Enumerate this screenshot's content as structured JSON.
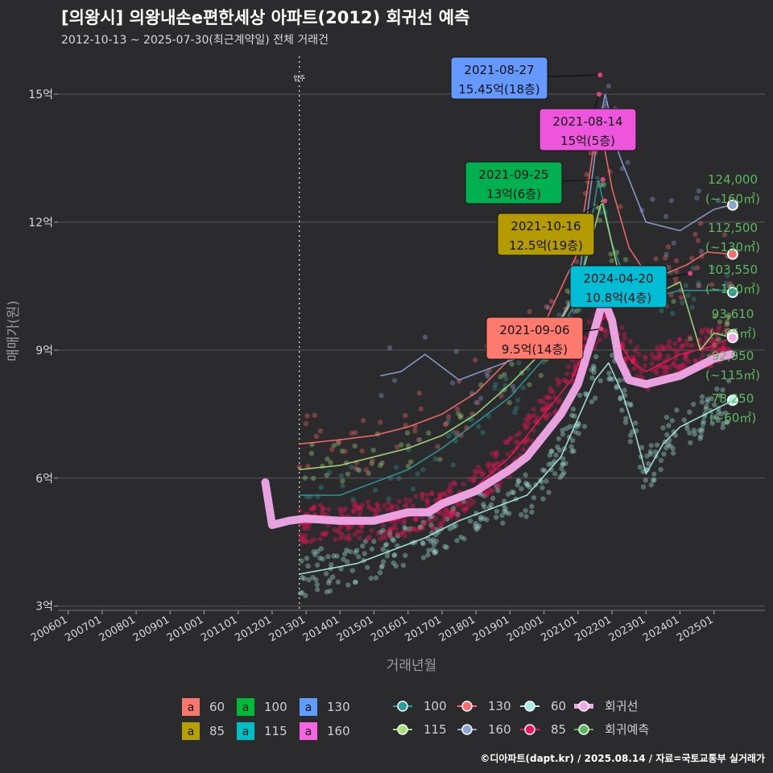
{
  "title": "[의왕시] 의왕내손e편한세상 아파트(2012) 회귀선 예측",
  "subtitle": "2012-10-13 ~ 2025-07-30(최근계약일) 전체 거래건",
  "credit": "©디아파트(dapt.kr) / 2025.08.14 / 자료=국토교통부 실거래가",
  "colors": {
    "background": "#2b2b2d",
    "grid": "#5a5a5c",
    "regression": "#f0a8e8",
    "forecast": "#5cb85c"
  },
  "chart_data": {
    "type": "line",
    "xlabel": "거래년월",
    "ylabel": "매매가(원)",
    "x_ticks": [
      "200601",
      "200701",
      "200801",
      "200901",
      "201001",
      "201101",
      "201201",
      "201301",
      "201401",
      "201501",
      "201601",
      "201701",
      "201801",
      "201901",
      "202001",
      "202101",
      "202201",
      "202301",
      "202401",
      "202501"
    ],
    "y_ticks": [
      {
        "value": 3,
        "label": "3억"
      },
      {
        "value": 6,
        "label": "6억"
      },
      {
        "value": 9,
        "label": "9억"
      },
      {
        "value": 12,
        "label": "12억"
      },
      {
        "value": 15,
        "label": "15억"
      }
    ],
    "xlim": [
      2005.7,
      2026.5
    ],
    "ylim": [
      2.9,
      16.0
    ],
    "grid": true,
    "move_in_label": "입주",
    "move_in_x": 2012.8,
    "series": [
      {
        "name": "60",
        "color": "#a8ede6",
        "x": [
          2012.8,
          2013.5,
          2014.5,
          2015.5,
          2016.5,
          2017.5,
          2018.5,
          2019.5,
          2020.5,
          2021.0,
          2021.5,
          2021.9,
          2022.3,
          2022.7,
          2023.0,
          2023.5,
          2024.0,
          2024.5,
          2025.0,
          2025.5
        ],
        "y": [
          3.75,
          3.85,
          4.0,
          4.3,
          4.6,
          5.0,
          5.3,
          5.6,
          6.5,
          7.4,
          8.3,
          8.7,
          8.0,
          7.0,
          6.1,
          6.8,
          7.2,
          7.4,
          7.6,
          7.8
        ]
      },
      {
        "name": "85",
        "color": "#f0145a",
        "x": [
          2012.8,
          2013.5,
          2014.5,
          2015.5,
          2016.5,
          2017.0,
          2018.0,
          2019.0,
          2020.0,
          2020.8,
          2021.5,
          2021.8,
          2022.2,
          2022.6,
          2023.0,
          2023.5,
          2024.0,
          2024.5,
          2025.0,
          2025.5
        ],
        "y": [
          4.9,
          5.0,
          5.0,
          5.0,
          5.2,
          5.3,
          5.8,
          6.5,
          7.5,
          8.3,
          9.5,
          9.8,
          9.2,
          8.7,
          8.5,
          8.7,
          8.9,
          9.0,
          9.1,
          9.3
        ]
      },
      {
        "name": "100",
        "color": "#2f9a9a",
        "x": [
          2012.8,
          2014.0,
          2015.0,
          2016.0,
          2017.0,
          2018.0,
          2019.0,
          2020.0,
          2021.0,
          2021.6,
          2022.0,
          2022.5,
          2023.0,
          2023.5,
          2024.0,
          2024.5,
          2025.0,
          2025.5
        ],
        "y": [
          5.6,
          5.6,
          5.9,
          6.2,
          6.7,
          7.3,
          7.9,
          8.8,
          10.2,
          13.0,
          11.5,
          10.4,
          10.2,
          10.3,
          10.4,
          10.4,
          10.4,
          10.4
        ]
      },
      {
        "name": "115",
        "color": "#a6e07a",
        "x": [
          2012.8,
          2014.0,
          2015.0,
          2016.0,
          2017.0,
          2018.0,
          2019.0,
          2020.0,
          2021.0,
          2021.7,
          2022.2,
          2023.0,
          2024.0,
          2024.6,
          2025.0,
          2025.5
        ],
        "y": [
          6.2,
          6.3,
          6.5,
          6.7,
          7.0,
          7.5,
          8.2,
          9.0,
          10.4,
          12.5,
          10.8,
          10.2,
          10.6,
          9.0,
          9.4,
          9.3
        ]
      },
      {
        "name": "130",
        "color": "#ff6b6b",
        "x": [
          2012.8,
          2014.0,
          2015.0,
          2016.0,
          2017.0,
          2018.0,
          2019.0,
          2020.0,
          2021.0,
          2021.6,
          2022.0,
          2022.5,
          2023.0,
          2023.6,
          2024.2,
          2024.8,
          2025.5
        ],
        "y": [
          6.8,
          6.9,
          7.0,
          7.2,
          7.5,
          8.0,
          8.8,
          9.6,
          11.3,
          14.5,
          12.8,
          11.4,
          10.8,
          10.8,
          11.0,
          11.3,
          11.25
        ]
      },
      {
        "name": "160",
        "color": "#8fa3d8",
        "x": [
          2015.2,
          2015.8,
          2016.5,
          2017.5,
          2018.5,
          2019.5,
          2020.2,
          2021.0,
          2021.6,
          2021.8,
          2022.2,
          2023.0,
          2024.0,
          2024.6,
          2025.0,
          2025.5
        ],
        "y": [
          8.4,
          8.5,
          8.9,
          8.3,
          8.6,
          8.9,
          9.3,
          10.5,
          14.2,
          15.0,
          13.6,
          12.0,
          11.8,
          12.1,
          12.3,
          12.4
        ]
      },
      {
        "name": "회귀선",
        "color": "#f0a8e8",
        "x": [
          2011.8,
          2012.0,
          2012.5,
          2013.0,
          2014.0,
          2015.0,
          2016.0,
          2016.6,
          2017.0,
          2018.0,
          2019.0,
          2019.5,
          2020.0,
          2020.5,
          2021.0,
          2021.5,
          2021.75,
          2022.0,
          2022.2,
          2022.5,
          2023.0,
          2023.5,
          2024.0,
          2024.5,
          2025.0,
          2025.5
        ],
        "y": [
          5.9,
          4.9,
          5.0,
          5.05,
          5.0,
          5.0,
          5.2,
          5.2,
          5.4,
          5.7,
          6.2,
          6.5,
          7.0,
          7.5,
          8.2,
          9.5,
          10.2,
          9.7,
          8.8,
          8.3,
          8.2,
          8.3,
          8.4,
          8.6,
          8.8,
          8.9
        ]
      }
    ],
    "forecast_points": [
      {
        "value": "124,000",
        "size": "(~160㎡)",
        "y": 12.4
      },
      {
        "value": "112,500",
        "size": "(~130㎡)",
        "y": 11.25
      },
      {
        "value": "103,550",
        "size": "(~100㎡)",
        "y": 10.355
      },
      {
        "value": "93,610",
        "size": "(~85㎡)",
        "y": 9.361
      },
      {
        "value": "92,950",
        "size": "(~115㎡)",
        "y": 9.295
      },
      {
        "value": "78,250",
        "size": "(~60㎡)",
        "y": 7.825
      }
    ],
    "callouts": [
      {
        "date": "2021-08-27",
        "price": "15.45억(18층)",
        "color": "#6699ff",
        "x": 2021.65,
        "y": 15.45
      },
      {
        "date": "2021-08-14",
        "price": "15억(5층)",
        "color": "#ee55dd",
        "x": 2021.62,
        "y": 15.0
      },
      {
        "date": "2021-09-25",
        "price": "13억(6층)",
        "color": "#00b050",
        "x": 2021.73,
        "y": 13.0
      },
      {
        "date": "2021-10-16",
        "price": "12.5억(19층)",
        "color": "#b39b00",
        "x": 2021.79,
        "y": 12.5
      },
      {
        "date": "2024-04-20",
        "price": "10.8억(4층)",
        "color": "#00bcd4",
        "x": 2024.3,
        "y": 10.8
      },
      {
        "date": "2021-09-06",
        "price": "9.5억(14층)",
        "color": "#ff7a6e",
        "x": 2021.68,
        "y": 9.5
      }
    ],
    "legend_area": [
      {
        "label": "60",
        "color": "#f8766d"
      },
      {
        "label": "85",
        "color": "#b79f00"
      },
      {
        "label": "100",
        "color": "#00ba38"
      },
      {
        "label": "115",
        "color": "#00bfc4"
      },
      {
        "label": "130",
        "color": "#619cff"
      },
      {
        "label": "160",
        "color": "#f564e3"
      }
    ],
    "legend_lines": [
      {
        "label": "100",
        "color": "#2f9a9a"
      },
      {
        "label": "115",
        "color": "#a6e07a"
      },
      {
        "label": "130",
        "color": "#ff6b6b"
      },
      {
        "label": "160",
        "color": "#8fa3d8"
      },
      {
        "label": "60",
        "color": "#a8ede6"
      },
      {
        "label": "85",
        "color": "#f0145a"
      },
      {
        "label": "회귀선",
        "color": "#f0a8e8"
      },
      {
        "label": "회귀예측",
        "color": "#5cb85c"
      }
    ]
  }
}
